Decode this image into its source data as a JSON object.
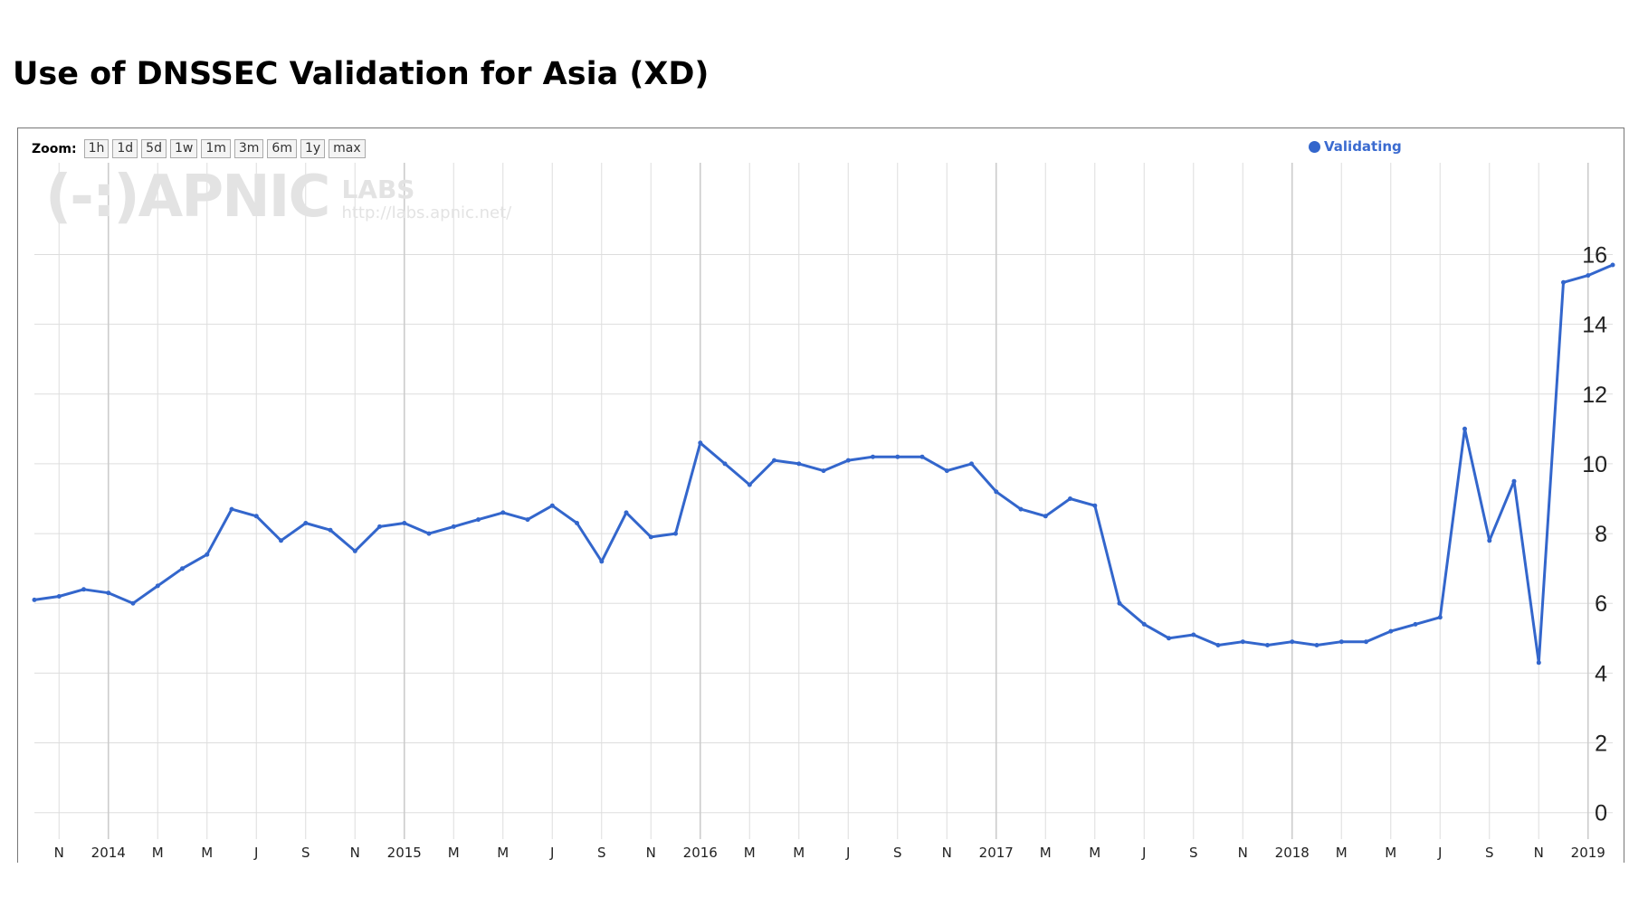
{
  "title": "Use of DNSSEC Validation for Asia (XD)",
  "zoom": {
    "label": "Zoom:",
    "buttons": [
      "1h",
      "1d",
      "5d",
      "1w",
      "1m",
      "3m",
      "6m",
      "1y",
      "max"
    ]
  },
  "watermark": {
    "logo": "(-:)APNIC",
    "labs": "LABS",
    "url": "http://labs.apnic.net/"
  },
  "colors": {
    "series": "#3366cc",
    "grid": "#dddddd"
  },
  "chart_data": {
    "type": "line",
    "title": "Use of DNSSEC Validation for Asia (XD)",
    "xlabel": "",
    "ylabel": "",
    "ylim": [
      -0.5,
      18.5
    ],
    "yticks": [
      0,
      2,
      4,
      6,
      8,
      10,
      12,
      14,
      16
    ],
    "xtick_labels": [
      "N",
      "2014",
      "M",
      "M",
      "J",
      "S",
      "N",
      "2015",
      "M",
      "M",
      "J",
      "S",
      "N",
      "2016",
      "M",
      "M",
      "J",
      "S",
      "N",
      "2017",
      "M",
      "M",
      "J",
      "S",
      "N",
      "2018",
      "M",
      "M",
      "J",
      "S",
      "N",
      "2019"
    ],
    "grid": true,
    "legend_position": "top-right",
    "series": [
      {
        "name": "Validating",
        "x": [
          "2013-10",
          "2013-11",
          "2013-12",
          "2014-01",
          "2014-02",
          "2014-03",
          "2014-04",
          "2014-05",
          "2014-06",
          "2014-07",
          "2014-08",
          "2014-09",
          "2014-10",
          "2014-11",
          "2014-12",
          "2015-01",
          "2015-02",
          "2015-03",
          "2015-04",
          "2015-05",
          "2015-06",
          "2015-07",
          "2015-08",
          "2015-09",
          "2015-10",
          "2015-11",
          "2015-12",
          "2016-01",
          "2016-02",
          "2016-03",
          "2016-04",
          "2016-05",
          "2016-06",
          "2016-07",
          "2016-08",
          "2016-09",
          "2016-10",
          "2016-11",
          "2016-12",
          "2017-01",
          "2017-02",
          "2017-03",
          "2017-04",
          "2017-05",
          "2017-06",
          "2017-07",
          "2017-08",
          "2017-09",
          "2017-10",
          "2017-11",
          "2017-12",
          "2018-01",
          "2018-02",
          "2018-03",
          "2018-04",
          "2018-05",
          "2018-06",
          "2018-07",
          "2018-08",
          "2018-09",
          "2018-10",
          "2018-11",
          "2018-12",
          "2019-01",
          "2019-02"
        ],
        "values": [
          6.1,
          6.2,
          6.4,
          6.3,
          6.0,
          6.5,
          7.0,
          7.4,
          8.7,
          8.5,
          7.8,
          8.3,
          8.1,
          7.5,
          8.2,
          8.3,
          8.0,
          8.2,
          8.4,
          8.6,
          8.4,
          8.8,
          8.3,
          7.2,
          8.6,
          7.9,
          8.0,
          10.6,
          10.0,
          9.4,
          10.1,
          10.0,
          9.8,
          10.1,
          10.2,
          10.2,
          10.2,
          9.8,
          10.0,
          9.2,
          8.7,
          8.5,
          9.0,
          8.8,
          6.0,
          5.4,
          5.0,
          5.1,
          4.8,
          4.9,
          4.8,
          4.9,
          4.8,
          4.9,
          4.9,
          5.2,
          5.4,
          5.6,
          11.0,
          7.8,
          9.5,
          4.3,
          15.2,
          15.4,
          15.7
        ]
      }
    ]
  }
}
